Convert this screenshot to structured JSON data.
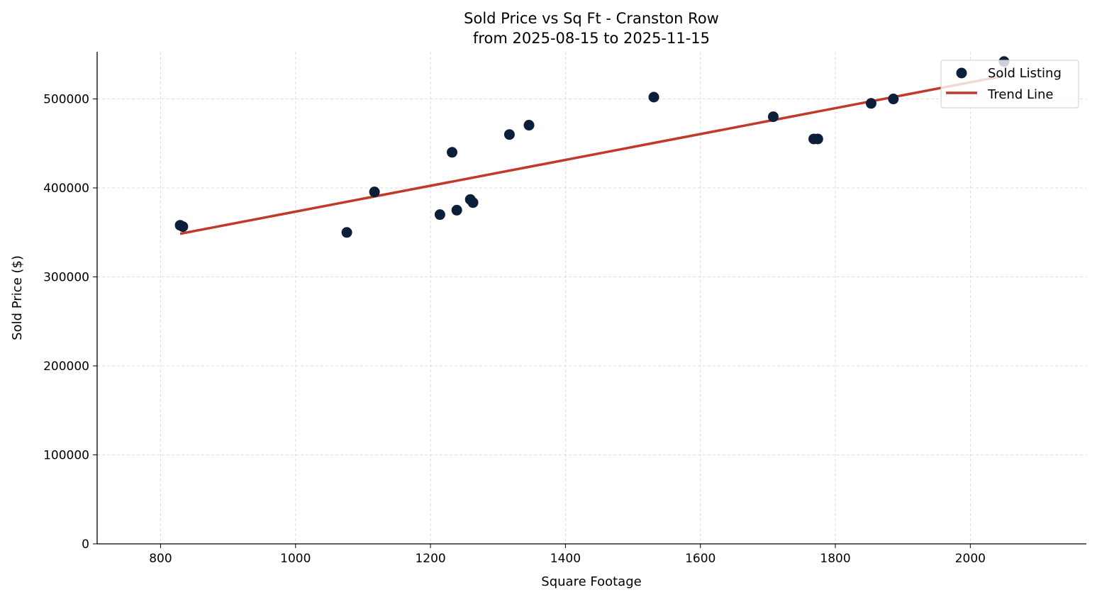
{
  "chart_data": {
    "type": "scatter",
    "title": "Sold Price vs Sq Ft - Cranston Row",
    "subtitle": "from 2025-08-15 to 2025-11-15",
    "xlabel": "Square Footage",
    "ylabel": "Sold Price ($)",
    "xlim": [
      706,
      2172
    ],
    "ylim": [
      0,
      553000
    ],
    "xticks": [
      800,
      1000,
      1200,
      1400,
      1600,
      1800,
      2000
    ],
    "yticks": [
      0,
      100000,
      200000,
      300000,
      400000,
      500000
    ],
    "grid": true,
    "legend_position": "top-right",
    "series": [
      {
        "name": "Sold Listing",
        "kind": "scatter",
        "color": "#0b1f3a",
        "points": [
          [
            829,
            358000
          ],
          [
            833,
            356500
          ],
          [
            1076,
            350000
          ],
          [
            1117,
            395500
          ],
          [
            1214,
            370000
          ],
          [
            1232,
            440000
          ],
          [
            1239,
            375000
          ],
          [
            1259,
            387000
          ],
          [
            1263,
            383500
          ],
          [
            1317,
            460000
          ],
          [
            1346,
            470500
          ],
          [
            1531,
            502000
          ],
          [
            1708,
            480000
          ],
          [
            1768,
            455000
          ],
          [
            1774,
            455000
          ],
          [
            1853,
            495000
          ],
          [
            1886,
            500000
          ],
          [
            2050,
            542000
          ]
        ]
      },
      {
        "name": "Trend Line",
        "kind": "line",
        "color": "#c0392b",
        "points": [
          [
            829,
            348500
          ],
          [
            2049,
            525800
          ]
        ]
      }
    ]
  }
}
